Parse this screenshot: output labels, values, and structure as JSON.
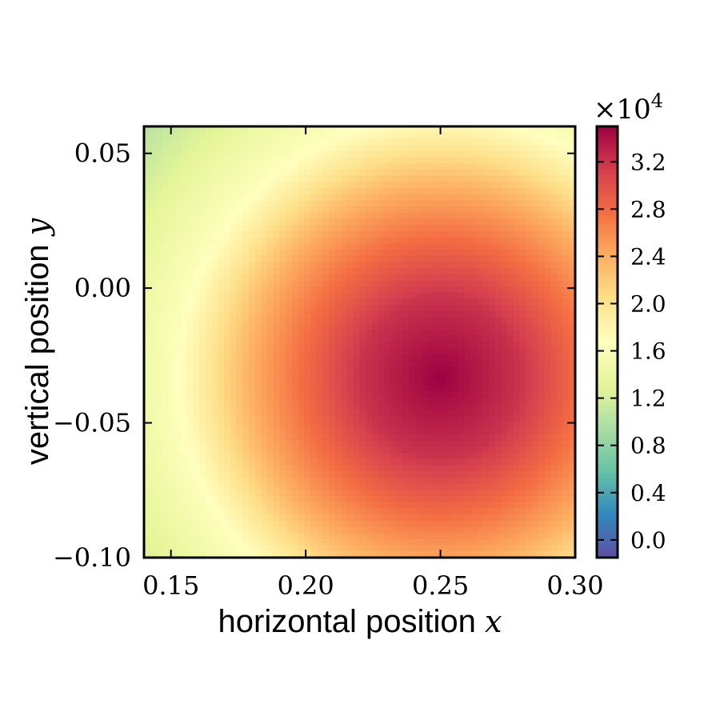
{
  "chart_data": {
    "type": "heatmap",
    "xlabel": {
      "text": "horizontal position ",
      "var": "x"
    },
    "ylabel": {
      "text": "vertical position ",
      "var": "y"
    },
    "xlim": [
      0.14,
      0.3
    ],
    "ylim": [
      -0.1,
      0.06
    ],
    "xticks": [
      0.15,
      0.2,
      0.25,
      0.3
    ],
    "xtick_labels": [
      "0.15",
      "0.20",
      "0.25",
      "0.30"
    ],
    "yticks": [
      0.05,
      0.0,
      -0.05,
      -0.1
    ],
    "ytick_labels": [
      "0.05",
      "0.00",
      "−0.05",
      "−0.10"
    ],
    "field": {
      "model": "radial",
      "center": [
        0.25,
        -0.033
      ],
      "peak": 35000,
      "samples": [
        {
          "r": 0.0,
          "v": 35000
        },
        {
          "r": 0.03,
          "v": 32000
        },
        {
          "r": 0.05,
          "v": 28000
        },
        {
          "r": 0.07,
          "v": 24000
        },
        {
          "r": 0.088,
          "v": 19000
        },
        {
          "r": 0.1,
          "v": 16000
        },
        {
          "r": 0.12,
          "v": 13500
        },
        {
          "r": 0.145,
          "v": 10000
        }
      ]
    },
    "colorbar": {
      "min": -1500,
      "max": 35000,
      "colormap": "Spectral_r",
      "ticks": [
        0,
        4000,
        8000,
        12000,
        16000,
        20000,
        24000,
        28000,
        32000
      ],
      "tick_labels": [
        "0.0",
        "0.4",
        "0.8",
        "1.2",
        "1.6",
        "2.0",
        "2.4",
        "2.8",
        "3.2"
      ],
      "multiplier_prefix": "×10",
      "multiplier_exp": "4"
    },
    "colors": [
      "#5e4fa2",
      "#3288bd",
      "#66c2a5",
      "#abdda4",
      "#e6f598",
      "#ffffbf",
      "#fee08b",
      "#fdae61",
      "#f46d43",
      "#d53e4f",
      "#9e0142"
    ],
    "grid": false
  }
}
